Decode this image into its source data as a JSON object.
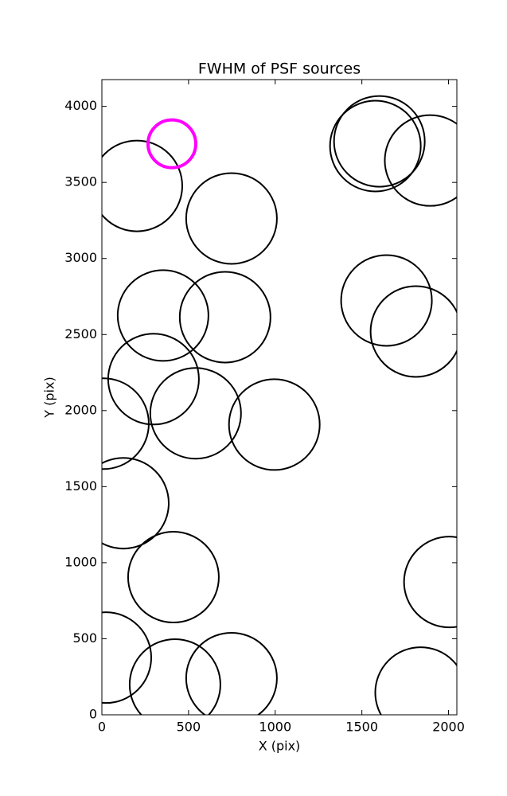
{
  "chart_data": {
    "type": "scatter",
    "title": "FWHM of PSF sources",
    "xlabel": "X (pix)",
    "ylabel": "Y (pix)",
    "xlim": [
      0,
      2048
    ],
    "ylim": [
      0,
      4176
    ],
    "xticks": [
      0,
      500,
      1000,
      1500,
      2000
    ],
    "yticks": [
      0,
      500,
      1000,
      1500,
      2000,
      2500,
      3000,
      3500,
      4000
    ],
    "series": [
      {
        "color": "#000000",
        "x": [
          202,
          748,
          1601,
          1578,
          1894,
          353,
          711,
          1642,
          1812,
          298,
          9,
          541,
          995,
          124,
          413,
          2005,
          23,
          422,
          748,
          1839
        ],
        "y": [
          3477,
          3263,
          3770,
          3739,
          3644,
          2625,
          2614,
          2724,
          2520,
          2207,
          1914,
          1982,
          1908,
          1391,
          905,
          873,
          376,
          199,
          241,
          146
        ]
      },
      {
        "color": "#ff00ff",
        "x": [
          404
        ],
        "y": [
          3754
        ]
      }
    ]
  }
}
